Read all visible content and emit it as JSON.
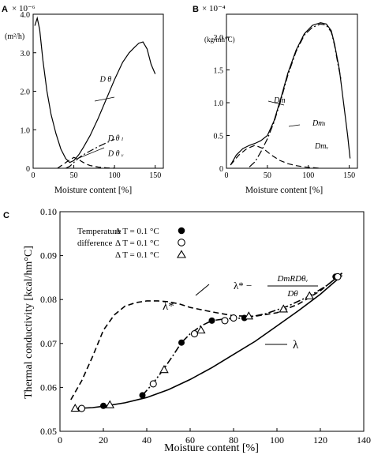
{
  "panels": {
    "A": {
      "letter": "A",
      "scale": "× 10⁻⁶",
      "unit": "(m²/h)",
      "xlabel": "Moisture content [%]"
    },
    "B": {
      "letter": "B",
      "scale": "× 10⁻⁴",
      "unit": "(kg/mh°C)",
      "xlabel": "Moisture content [%]"
    },
    "C": {
      "letter": "C",
      "xlabel": "Moisture content [%]",
      "ylabel": "Thermal conductivity [kcal/hm°C]",
      "legend_title_1": "Temperature",
      "legend_title_2": "difference",
      "legend_rows": [
        "Δ T  =  0.1 °C",
        "Δ T  =  0.1 °C",
        "Δ T  =  0.1 °C"
      ],
      "label_lambda_star": "λ*",
      "label_combo_left": "λ* −",
      "label_combo_num": "DтRDθᵥ",
      "label_combo_den": "Dθ",
      "label_lambda": "λ"
    }
  },
  "chart_data": [
    {
      "panel": "A",
      "type": "line",
      "xlim": [
        0,
        160
      ],
      "ylim": [
        0,
        4.0
      ],
      "xticks": [
        0,
        50,
        100,
        150
      ],
      "yticks": [
        0,
        1.0,
        2.0,
        3.0,
        4.0
      ],
      "ytick_labels": [
        "0",
        "1.0",
        "2.0",
        "3.0",
        "4.0"
      ],
      "series": [
        {
          "name": "Dθ",
          "style": "solid",
          "x": [
            2,
            5,
            8,
            12,
            17,
            22,
            28,
            34,
            40,
            45,
            50,
            56,
            62,
            70,
            80,
            90,
            100,
            110,
            118,
            125,
            130,
            135,
            140,
            145,
            150
          ],
          "y": [
            3.7,
            3.9,
            3.6,
            2.8,
            2.0,
            1.4,
            0.9,
            0.5,
            0.25,
            0.15,
            0.2,
            0.35,
            0.55,
            0.85,
            1.3,
            1.8,
            2.3,
            2.75,
            3.0,
            3.15,
            3.25,
            3.28,
            3.1,
            2.7,
            2.45
          ]
        },
        {
          "name": "Dθₗ",
          "style": "dashdot",
          "x": [
            40,
            45,
            50,
            55,
            60,
            70,
            80,
            90,
            100
          ],
          "y": [
            0.0,
            0.05,
            0.15,
            0.25,
            0.33,
            0.45,
            0.56,
            0.66,
            0.75
          ]
        },
        {
          "name": "Dθᵥ",
          "style": "dashed",
          "x": [
            30,
            38,
            45,
            50,
            55,
            60,
            65,
            70,
            80,
            90,
            100
          ],
          "y": [
            0.0,
            0.12,
            0.22,
            0.28,
            0.24,
            0.17,
            0.11,
            0.07,
            0.03,
            0.01,
            0.0
          ]
        }
      ],
      "labels": [
        {
          "text": "D θ",
          "x": 82,
          "y": 2.25
        },
        {
          "text": "D θ ₗ",
          "x": 92,
          "y": 0.72
        },
        {
          "text": "D θ ᵥ",
          "x": 92,
          "y": 0.32
        }
      ]
    },
    {
      "panel": "B",
      "type": "line",
      "xlim": [
        0,
        160
      ],
      "ylim": [
        0,
        2.35
      ],
      "xticks": [
        0,
        50,
        100,
        150
      ],
      "yticks": [
        0,
        0.5,
        1.0,
        1.5,
        2.0
      ],
      "ytick_labels": [
        "0",
        "0.5",
        "1.0",
        "1.5",
        "2.0"
      ],
      "series": [
        {
          "name": "Dт",
          "style": "solid",
          "x": [
            5,
            12,
            20,
            28,
            35,
            42,
            50,
            58,
            66,
            75,
            85,
            95,
            105,
            115,
            122,
            128,
            132,
            138,
            143,
            148,
            151
          ],
          "y": [
            0.05,
            0.2,
            0.3,
            0.35,
            0.38,
            0.42,
            0.5,
            0.72,
            1.05,
            1.45,
            1.8,
            2.05,
            2.18,
            2.22,
            2.2,
            2.1,
            1.9,
            1.5,
            1.0,
            0.5,
            0.15
          ]
        },
        {
          "name": "Dтₗ",
          "style": "dashdot",
          "x": [
            28,
            35,
            42,
            50,
            58,
            66,
            75,
            85,
            95,
            105,
            115,
            122,
            128,
            132,
            136,
            140
          ],
          "y": [
            0.02,
            0.1,
            0.25,
            0.45,
            0.7,
            1.02,
            1.42,
            1.78,
            2.03,
            2.15,
            2.2,
            2.18,
            2.08,
            1.88,
            1.6,
            1.35
          ]
        },
        {
          "name": "Dтᵥ",
          "style": "dashed",
          "x": [
            5,
            15,
            25,
            35,
            45,
            55,
            65,
            75,
            85,
            95,
            105,
            115
          ],
          "y": [
            0.05,
            0.2,
            0.3,
            0.35,
            0.3,
            0.2,
            0.12,
            0.07,
            0.04,
            0.02,
            0.01,
            0.0
          ]
        }
      ],
      "labels": [
        {
          "text": "Dт",
          "x": 58,
          "y": 1.0
        },
        {
          "text": "Dтₗ",
          "x": 105,
          "y": 0.65
        },
        {
          "text": "Dтᵥ",
          "x": 108,
          "y": 0.3
        }
      ]
    },
    {
      "panel": "C",
      "type": "scatter",
      "xlim": [
        0,
        140
      ],
      "ylim": [
        0.05,
        0.1
      ],
      "xticks": [
        0,
        20,
        40,
        60,
        80,
        100,
        120,
        140
      ],
      "yticks": [
        0.05,
        0.06,
        0.07,
        0.08,
        0.09,
        0.1
      ],
      "ytick_labels": [
        "0.05",
        "0.06",
        "0.07",
        "0.08",
        "0.09",
        "0.10"
      ],
      "markers": [
        {
          "series": 0,
          "shape": "filled-circle",
          "x": [
            20,
            38,
            56,
            70,
            85,
            127
          ],
          "y": [
            0.0558,
            0.0582,
            0.0702,
            0.0752,
            0.0758,
            0.0852
          ]
        },
        {
          "series": 1,
          "shape": "open-circle",
          "x": [
            10,
            43,
            62,
            76,
            80,
            128
          ],
          "y": [
            0.0552,
            0.0608,
            0.0722,
            0.0752,
            0.0758,
            0.0852
          ]
        },
        {
          "series": 2,
          "shape": "open-triangle",
          "x": [
            7,
            23,
            48,
            65,
            87,
            103,
            115
          ],
          "y": [
            0.0552,
            0.056,
            0.064,
            0.073,
            0.0762,
            0.0778,
            0.0808
          ]
        }
      ],
      "lines": [
        {
          "name": "λ",
          "style": "solid",
          "x": [
            8,
            15,
            20,
            30,
            40,
            50,
            60,
            70,
            80,
            90,
            100,
            110,
            120,
            130
          ],
          "y": [
            0.0552,
            0.0554,
            0.0557,
            0.0565,
            0.0577,
            0.0595,
            0.0618,
            0.0645,
            0.0675,
            0.0705,
            0.074,
            0.0775,
            0.0812,
            0.0855
          ]
        },
        {
          "name": "λ*",
          "style": "dashed",
          "x": [
            5,
            10,
            15,
            20,
            25,
            30,
            35,
            40,
            45,
            50,
            55,
            60,
            70,
            80,
            90,
            100,
            110,
            120,
            130
          ],
          "y": [
            0.0572,
            0.0615,
            0.067,
            0.073,
            0.0765,
            0.0785,
            0.0793,
            0.0797,
            0.0797,
            0.0795,
            0.079,
            0.0782,
            0.0772,
            0.0763,
            0.0762,
            0.077,
            0.079,
            0.082,
            0.086
          ]
        },
        {
          "name": "λ* − DтRDθᵥ/Dθ",
          "style": "dashdot",
          "x": [
            38,
            43,
            48,
            52,
            56,
            60,
            65,
            70,
            76,
            85,
            95,
            105,
            115,
            123,
            130
          ],
          "y": [
            0.0582,
            0.061,
            0.0643,
            0.0672,
            0.0702,
            0.0722,
            0.074,
            0.0752,
            0.0756,
            0.0758,
            0.0768,
            0.0785,
            0.0808,
            0.0832,
            0.086
          ]
        }
      ]
    }
  ]
}
